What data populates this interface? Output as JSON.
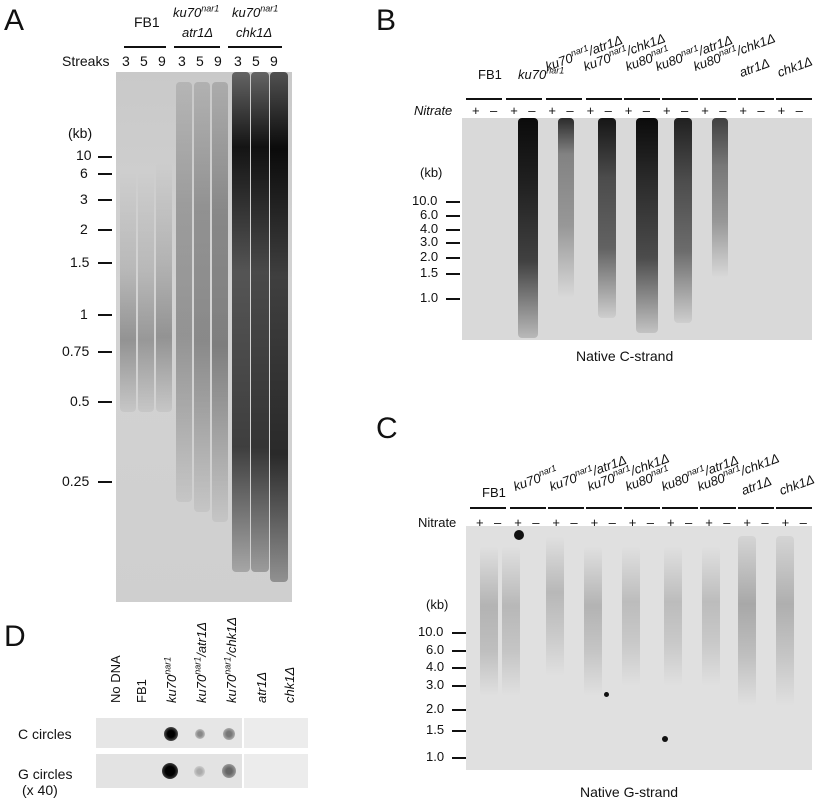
{
  "panels": {
    "A": {
      "letter": "A",
      "strains": [
        {
          "name": "FB1",
          "genotype_lines": []
        },
        {
          "name": "ku70",
          "sup": "nar1",
          "genotype_lines": [
            "atr1Δ"
          ]
        },
        {
          "name": "ku70",
          "sup": "nar1",
          "genotype_lines": [
            "chk1Δ"
          ]
        }
      ],
      "streaks_label": "Streaks",
      "streaks": [
        "3",
        "5",
        "9",
        "3",
        "5",
        "9",
        "3",
        "5",
        "9"
      ],
      "size_unit": "(kb)",
      "sizes": [
        "10",
        "6",
        "3",
        "2",
        "1.5",
        "1",
        "0.75",
        "0.5",
        "0.25"
      ]
    },
    "B": {
      "letter": "B",
      "strains": [
        {
          "label": "FB1",
          "italic": false,
          "sup": ""
        },
        {
          "label": "ku70",
          "italic": true,
          "sup": "nar1",
          "suffix": ""
        },
        {
          "label": "ku70",
          "italic": true,
          "sup": "nar1",
          "suffix": "/atr1Δ"
        },
        {
          "label": "ku70",
          "italic": true,
          "sup": "nar1",
          "suffix": "/chk1Δ"
        },
        {
          "label": "ku80",
          "italic": true,
          "sup": "nar1",
          "suffix": ""
        },
        {
          "label": "ku80",
          "italic": true,
          "sup": "nar1",
          "suffix": "/atr1Δ"
        },
        {
          "label": "ku80",
          "italic": true,
          "sup": "nar1",
          "suffix": "/chk1Δ"
        },
        {
          "label": "atr1Δ",
          "italic": true,
          "sup": ""
        },
        {
          "label": "chk1Δ",
          "italic": true,
          "sup": ""
        }
      ],
      "nitrate_label": "Nitrate",
      "plus": "+",
      "minus": "–",
      "size_unit": "(kb)",
      "sizes": [
        "10.0",
        "6.0",
        "4.0",
        "3.0",
        "2.0",
        "1.5",
        "1.0"
      ],
      "caption": "Native C-strand"
    },
    "C": {
      "letter": "C",
      "nitrate_label": "Nitrate",
      "plus": "+",
      "minus": "–",
      "size_unit": "(kb)",
      "sizes": [
        "10.0",
        "6.0",
        "4.0",
        "3.0",
        "2.0",
        "1.5",
        "1.0"
      ],
      "caption": "Native G-strand"
    },
    "D": {
      "letter": "D",
      "columns": [
        "No DNA",
        "FB1",
        "ku70",
        "ku70",
        "ku70",
        "atr1Δ",
        "chk1Δ"
      ],
      "column_sups": [
        "",
        "",
        "nar1",
        "nar1",
        "nar1",
        "",
        ""
      ],
      "column_suffix": [
        "",
        "",
        "",
        "/atr1Δ",
        "/chk1Δ",
        "",
        ""
      ],
      "rows": [
        "C circles",
        "G circles"
      ],
      "row_note": "(x 40)"
    }
  }
}
